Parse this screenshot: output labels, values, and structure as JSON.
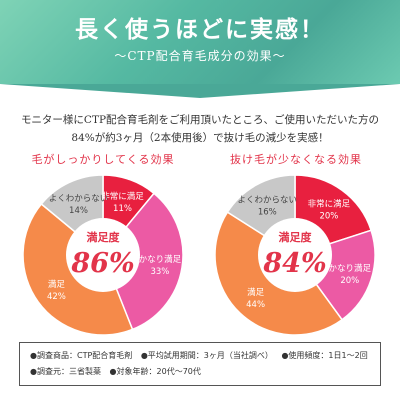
{
  "headline": "長く使うほどに実感！",
  "subheadline": "～CTP配合育毛成分の効果～",
  "intro_lines": [
    "モニター様にCTP配合育毛剤をご利用頂いたところ、ご使用いただいた方の",
    "84%が約3ヶ月（2本使用後）で抜け毛の減少を実感！"
  ],
  "chart_data": [
    {
      "type": "pie",
      "title": "毛がしっかりしてくる効果",
      "center_label": "満足度",
      "center_value": "86%",
      "slices": [
        {
          "label": "非常に満足",
          "value": 11,
          "text": "11%",
          "color": "#e8203f"
        },
        {
          "label": "かなり満足",
          "value": 33,
          "text": "33%",
          "color": "#ec5aa4"
        },
        {
          "label": "満足",
          "value": 42,
          "text": "42%",
          "color": "#f58a4a"
        },
        {
          "label": "よくわからない",
          "value": 14,
          "text": "14%",
          "color": "#c8c8c8"
        }
      ]
    },
    {
      "type": "pie",
      "title": "抜け毛が少なくなる効果",
      "center_label": "満足度",
      "center_value": "84%",
      "slices": [
        {
          "label": "非常に満足",
          "value": 20,
          "text": "20%",
          "color": "#e8203f"
        },
        {
          "label": "かなり満足",
          "value": 20,
          "text": "20%",
          "color": "#ec5aa4"
        },
        {
          "label": "満足",
          "value": 44,
          "text": "44%",
          "color": "#f58a4a"
        },
        {
          "label": "よくわからない",
          "value": 16,
          "text": "16%",
          "color": "#c8c8c8"
        }
      ]
    }
  ],
  "notes": [
    [
      "●調査商品：CTP配合育毛剤",
      "●平均試用期間：3ヶ月（当社調べ）",
      "●使用頻度：1日1～2回"
    ],
    [
      "●調査元：三省製薬",
      "●対象年齢：20代～70代"
    ]
  ]
}
